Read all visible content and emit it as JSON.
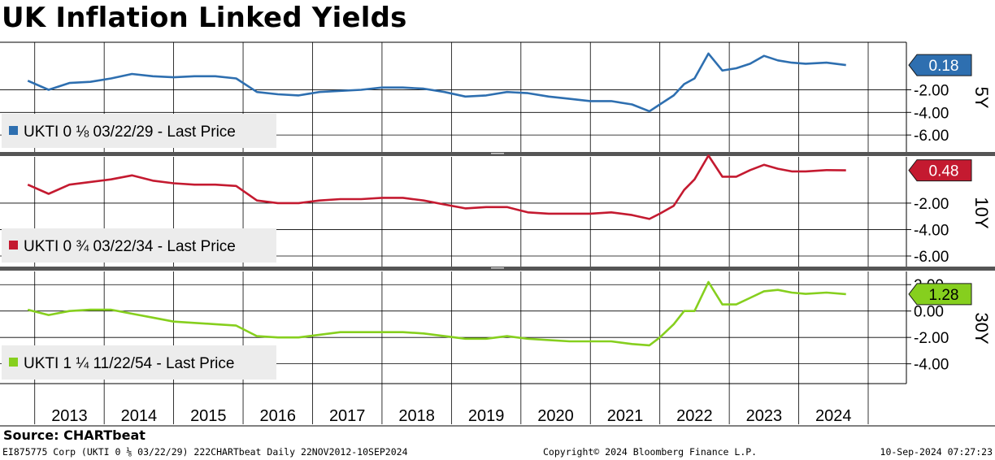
{
  "title": "UK Inflation Linked Yields",
  "source": "Source: CHARTbeat",
  "footer": {
    "left": "EI875775 Corp (UKTI 0 ⅛ 03/22/29) 222CHARTbeat  Daily 22NOV2012-10SEP2024",
    "center": "Copyright© 2024 Bloomberg Finance L.P.",
    "right": "10-Sep-2024 07:27:23"
  },
  "chart_data": [
    {
      "type": "line",
      "panel_label": "5Y",
      "legend": "UKTI 0 ⅛ 03/22/29 - Last Price",
      "color": "#2e6fb0",
      "last_value_label": "0.18",
      "last_value": 0.18,
      "ylim": [
        -7.5,
        2.2
      ],
      "yticks": [
        -2.0,
        -4.0,
        -6.0
      ],
      "ytick_labels": [
        "-2.00",
        "-4.00",
        "-6.00"
      ],
      "x": [
        2012.9,
        2013.2,
        2013.5,
        2013.8,
        2014.1,
        2014.4,
        2014.7,
        2015.0,
        2015.3,
        2015.6,
        2015.9,
        2016.2,
        2016.5,
        2016.8,
        2017.1,
        2017.4,
        2017.7,
        2018.0,
        2018.3,
        2018.6,
        2018.9,
        2019.2,
        2019.5,
        2019.8,
        2020.1,
        2020.4,
        2020.7,
        2021.0,
        2021.3,
        2021.6,
        2021.85,
        2022.0,
        2022.2,
        2022.35,
        2022.5,
        2022.7,
        2022.9,
        2023.1,
        2023.3,
        2023.5,
        2023.7,
        2023.9,
        2024.1,
        2024.4,
        2024.68
      ],
      "values": [
        -1.2,
        -2.0,
        -1.4,
        -1.3,
        -1.0,
        -0.6,
        -0.8,
        -0.9,
        -0.8,
        -0.8,
        -1.0,
        -2.2,
        -2.4,
        -2.5,
        -2.2,
        -2.1,
        -2.0,
        -1.8,
        -1.8,
        -1.9,
        -2.2,
        -2.6,
        -2.5,
        -2.2,
        -2.3,
        -2.6,
        -2.8,
        -3.0,
        -3.0,
        -3.3,
        -3.9,
        -3.3,
        -2.5,
        -1.5,
        -1.0,
        1.2,
        -0.3,
        -0.1,
        0.3,
        1.0,
        0.6,
        0.4,
        0.3,
        0.4,
        0.18
      ]
    },
    {
      "type": "line",
      "panel_label": "10Y",
      "legend": "UKTI 0 ¾ 03/22/34 - Last Price",
      "color": "#c41a30",
      "last_value_label": "0.48",
      "last_value": 0.48,
      "ylim": [
        -6.8,
        1.5
      ],
      "yticks": [
        -2.0,
        -4.0,
        -6.0
      ],
      "ytick_labels": [
        "-2.00",
        "-4.00",
        "-6.00"
      ],
      "x": [
        2012.9,
        2013.2,
        2013.5,
        2013.8,
        2014.1,
        2014.4,
        2014.7,
        2015.0,
        2015.3,
        2015.6,
        2015.9,
        2016.2,
        2016.5,
        2016.8,
        2017.1,
        2017.4,
        2017.7,
        2018.0,
        2018.3,
        2018.6,
        2018.9,
        2019.2,
        2019.5,
        2019.8,
        2020.1,
        2020.4,
        2020.7,
        2021.0,
        2021.3,
        2021.6,
        2021.85,
        2022.0,
        2022.2,
        2022.35,
        2022.5,
        2022.7,
        2022.9,
        2023.1,
        2023.3,
        2023.5,
        2023.7,
        2023.9,
        2024.1,
        2024.4,
        2024.68
      ],
      "values": [
        -0.6,
        -1.3,
        -0.6,
        -0.4,
        -0.2,
        0.1,
        -0.3,
        -0.5,
        -0.6,
        -0.6,
        -0.7,
        -1.8,
        -2.0,
        -2.0,
        -1.8,
        -1.7,
        -1.7,
        -1.6,
        -1.6,
        -1.8,
        -2.1,
        -2.4,
        -2.3,
        -2.3,
        -2.7,
        -2.8,
        -2.8,
        -2.8,
        -2.7,
        -2.9,
        -3.2,
        -2.8,
        -2.2,
        -1.0,
        -0.2,
        1.6,
        0.0,
        0.0,
        0.5,
        0.9,
        0.6,
        0.4,
        0.4,
        0.5,
        0.48
      ]
    },
    {
      "type": "line",
      "panel_label": "30Y",
      "legend": "UKTI 1 ¼ 11/22/54 - Last Price",
      "color": "#86cf1e",
      "last_value_label": "1.28",
      "last_value": 1.28,
      "ylim": [
        -5.5,
        3.0
      ],
      "yticks": [
        2.0,
        0.0,
        -2.0,
        -4.0
      ],
      "ytick_labels": [
        "2.00",
        "0.00",
        "-2.00",
        "-4.00"
      ],
      "x": [
        2012.9,
        2013.2,
        2013.5,
        2013.8,
        2014.1,
        2014.4,
        2014.7,
        2015.0,
        2015.3,
        2015.6,
        2015.9,
        2016.2,
        2016.5,
        2016.8,
        2017.1,
        2017.4,
        2017.7,
        2018.0,
        2018.3,
        2018.6,
        2018.9,
        2019.2,
        2019.5,
        2019.8,
        2020.1,
        2020.4,
        2020.7,
        2021.0,
        2021.3,
        2021.6,
        2021.85,
        2022.0,
        2022.2,
        2022.35,
        2022.5,
        2022.7,
        2022.9,
        2023.1,
        2023.3,
        2023.5,
        2023.7,
        2023.9,
        2024.1,
        2024.4,
        2024.68
      ],
      "values": [
        0.1,
        -0.3,
        0.0,
        0.1,
        0.1,
        -0.2,
        -0.5,
        -0.8,
        -0.9,
        -1.0,
        -1.1,
        -1.9,
        -2.0,
        -2.0,
        -1.8,
        -1.6,
        -1.6,
        -1.6,
        -1.6,
        -1.7,
        -1.9,
        -2.1,
        -2.1,
        -1.9,
        -2.1,
        -2.2,
        -2.3,
        -2.3,
        -2.3,
        -2.5,
        -2.6,
        -2.0,
        -1.0,
        0.0,
        0.0,
        2.2,
        0.5,
        0.5,
        1.0,
        1.5,
        1.6,
        1.4,
        1.3,
        1.4,
        1.28
      ]
    }
  ],
  "x_axis": {
    "xlim": [
      2012.5,
      2025.55
    ],
    "year_labels": [
      "2013",
      "2014",
      "2015",
      "2016",
      "2017",
      "2018",
      "2019",
      "2020",
      "2021",
      "2022",
      "2023",
      "2024"
    ],
    "year_centers": [
      2013.5,
      2014.5,
      2015.5,
      2016.5,
      2017.5,
      2018.5,
      2019.5,
      2020.5,
      2021.5,
      2022.5,
      2023.5,
      2024.5
    ]
  }
}
